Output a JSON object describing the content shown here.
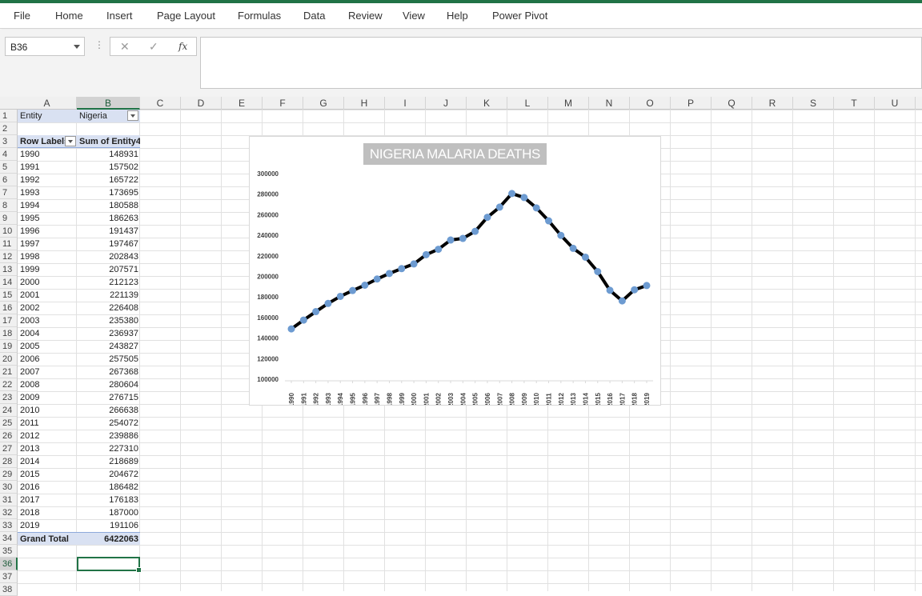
{
  "ribbon": {
    "tabs": [
      "File",
      "Home",
      "Insert",
      "Page Layout",
      "Formulas",
      "Data",
      "Review",
      "View",
      "Help",
      "Power Pivot"
    ]
  },
  "formula_bar": {
    "name_box": "B36",
    "fx_symbol": "fx",
    "cancel_symbol": "✕",
    "confirm_symbol": "✓",
    "formula": ""
  },
  "sheet": {
    "columns": [
      "A",
      "B",
      "C",
      "D",
      "E",
      "F",
      "G",
      "H",
      "I",
      "J",
      "K",
      "L",
      "M",
      "N",
      "O",
      "P",
      "Q",
      "R",
      "S",
      "T",
      "U"
    ],
    "active_column": "B",
    "rows": [
      "1",
      "2",
      "3",
      "4",
      "5",
      "6",
      "7",
      "8",
      "9",
      "10",
      "11",
      "12",
      "13",
      "14",
      "15",
      "16",
      "17",
      "18",
      "19",
      "20",
      "21",
      "22",
      "23",
      "24",
      "25",
      "26",
      "27",
      "28",
      "29",
      "30",
      "31",
      "32",
      "33",
      "34",
      "35",
      "36",
      "37",
      "38"
    ],
    "active_row": "36",
    "filter_label": "Entity",
    "filter_value": "Nigeria",
    "row_labels_header": "Row Labels",
    "sum_header": "Sum of Entity4",
    "pivot_rows": [
      {
        "label": "1990",
        "value": "148931"
      },
      {
        "label": "1991",
        "value": "157502"
      },
      {
        "label": "1992",
        "value": "165722"
      },
      {
        "label": "1993",
        "value": "173695"
      },
      {
        "label": "1994",
        "value": "180588"
      },
      {
        "label": "1995",
        "value": "186263"
      },
      {
        "label": "1996",
        "value": "191437"
      },
      {
        "label": "1997",
        "value": "197467"
      },
      {
        "label": "1998",
        "value": "202843"
      },
      {
        "label": "1999",
        "value": "207571"
      },
      {
        "label": "2000",
        "value": "212123"
      },
      {
        "label": "2001",
        "value": "221139"
      },
      {
        "label": "2002",
        "value": "226408"
      },
      {
        "label": "2003",
        "value": "235380"
      },
      {
        "label": "2004",
        "value": "236937"
      },
      {
        "label": "2005",
        "value": "243827"
      },
      {
        "label": "2006",
        "value": "257505"
      },
      {
        "label": "2007",
        "value": "267368"
      },
      {
        "label": "2008",
        "value": "280604"
      },
      {
        "label": "2009",
        "value": "276715"
      },
      {
        "label": "2010",
        "value": "266638"
      },
      {
        "label": "2011",
        "value": "254072"
      },
      {
        "label": "2012",
        "value": "239886"
      },
      {
        "label": "2013",
        "value": "227310"
      },
      {
        "label": "2014",
        "value": "218689"
      },
      {
        "label": "2015",
        "value": "204672"
      },
      {
        "label": "2016",
        "value": "186482"
      },
      {
        "label": "2017",
        "value": "176183"
      },
      {
        "label": "2018",
        "value": "187000"
      },
      {
        "label": "2019",
        "value": "191106"
      }
    ],
    "grand_total_label": "Grand Total",
    "grand_total_value": "6422063"
  },
  "chart_data": {
    "type": "line",
    "title": "NIGERIA MALARIA DEATHS",
    "xlabel": "",
    "ylabel": "",
    "categories": [
      "1990",
      "1991",
      "1992",
      "1993",
      "1994",
      "1995",
      "1996",
      "1997",
      "1998",
      "1999",
      "2000",
      "2001",
      "2002",
      "2003",
      "2004",
      "2005",
      "2006",
      "2007",
      "2008",
      "2009",
      "2010",
      "2011",
      "2012",
      "2013",
      "2014",
      "2015",
      "2016",
      "2017",
      "2018",
      "2019"
    ],
    "values": [
      148931,
      157502,
      165722,
      173695,
      180588,
      186263,
      191437,
      197467,
      202843,
      207571,
      212123,
      221139,
      226408,
      235380,
      236937,
      243827,
      257505,
      267368,
      280604,
      276715,
      266638,
      254072,
      239886,
      227310,
      218689,
      204672,
      186482,
      176183,
      187000,
      191106
    ],
    "ylim": [
      100000,
      300000
    ],
    "yticks": [
      "100000",
      "120000",
      "140000",
      "160000",
      "180000",
      "200000",
      "220000",
      "240000",
      "260000",
      "280000",
      "300000"
    ],
    "grid": false,
    "legend": "none",
    "line_color": "#000000",
    "marker_color": "#6d9bd1"
  }
}
